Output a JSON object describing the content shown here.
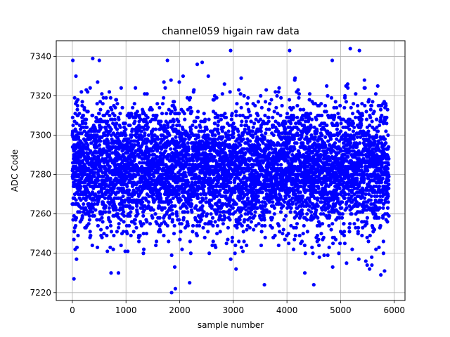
{
  "chart_data": {
    "type": "scatter",
    "title": "channel059 higain raw data",
    "xlabel": "sample number",
    "ylabel": "ADC Code",
    "xlim": [
      -300,
      6200
    ],
    "ylim": [
      7216,
      7348
    ],
    "xticks": [
      0,
      1000,
      2000,
      3000,
      4000,
      5000,
      6000
    ],
    "yticks": [
      7220,
      7240,
      7260,
      7280,
      7300,
      7320,
      7340
    ],
    "grid": true,
    "marker_color": "#0000ff",
    "n_samples": 5900,
    "y_center": 7283,
    "y_spread": 16,
    "notable_points": [
      {
        "x": 380,
        "y": 7339
      },
      {
        "x": 2950,
        "y": 7343
      },
      {
        "x": 4050,
        "y": 7343
      },
      {
        "x": 5180,
        "y": 7344
      },
      {
        "x": 5350,
        "y": 7343
      },
      {
        "x": 2420,
        "y": 7337
      },
      {
        "x": 1850,
        "y": 7220
      },
      {
        "x": 1920,
        "y": 7222
      },
      {
        "x": 3580,
        "y": 7224
      },
      {
        "x": 4500,
        "y": 7224
      },
      {
        "x": 30,
        "y": 7227
      },
      {
        "x": 5750,
        "y": 7229
      }
    ]
  }
}
